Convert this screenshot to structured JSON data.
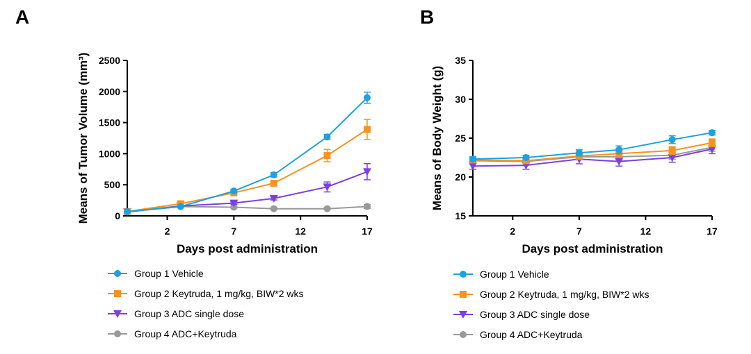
{
  "chart_data": [
    {
      "panel": "A",
      "type": "line",
      "xlabel": "Days post administration",
      "ylabel": "Means of Tumor Volume (mm³)",
      "xlim": [
        -1,
        17
      ],
      "ylim": [
        0,
        2500
      ],
      "xticks": [
        2,
        7,
        12,
        17
      ],
      "yticks": [
        0,
        500,
        1000,
        1500,
        2000,
        2500
      ],
      "x": [
        -1,
        3,
        7,
        10,
        14,
        17
      ],
      "series": [
        {
          "name": "Group 1 Vehicle",
          "color": "#1ca1e2",
          "marker": "circle",
          "values": [
            70,
            150,
            400,
            660,
            1270,
            1900
          ],
          "errors": [
            10,
            15,
            25,
            35,
            40,
            90
          ]
        },
        {
          "name": "Group 2 Keytruda, 1 mg/kg, BIW*2 wks",
          "color": "#f7931e",
          "marker": "square",
          "values": [
            70,
            195,
            370,
            525,
            970,
            1390
          ],
          "errors": [
            10,
            15,
            20,
            30,
            100,
            160
          ]
        },
        {
          "name": "Group 3 ADC single dose",
          "color": "#7b3fe4",
          "marker": "triangle-down",
          "values": [
            65,
            160,
            205,
            280,
            465,
            710
          ],
          "errors": [
            8,
            15,
            20,
            25,
            80,
            130
          ]
        },
        {
          "name": "Group 4 ADC+Keytruda",
          "color": "#999999",
          "marker": "circle",
          "values": [
            65,
            150,
            140,
            115,
            115,
            150
          ],
          "errors": [
            8,
            12,
            15,
            15,
            15,
            30
          ]
        }
      ]
    },
    {
      "panel": "B",
      "type": "line",
      "xlabel": "Days post administration",
      "ylabel": "Means of Body Weight (g)",
      "xlim": [
        -1,
        17
      ],
      "ylim": [
        15,
        35
      ],
      "xticks": [
        2,
        7,
        12,
        17
      ],
      "yticks": [
        15,
        20,
        25,
        30,
        35
      ],
      "x": [
        -1,
        3,
        7,
        10,
        14,
        17
      ],
      "series": [
        {
          "name": "Group 1 Vehicle",
          "color": "#1ca1e2",
          "marker": "circle",
          "values": [
            22.3,
            22.5,
            23.1,
            23.5,
            24.8,
            25.7
          ],
          "errors": [
            0.3,
            0.3,
            0.4,
            0.5,
            0.5,
            0.3
          ]
        },
        {
          "name": "Group 2 Keytruda, 1 mg/kg, BIW*2 wks",
          "color": "#f7931e",
          "marker": "square",
          "values": [
            22.2,
            22.1,
            22.7,
            23.0,
            23.4,
            24.4
          ],
          "errors": [
            0.3,
            0.3,
            0.4,
            0.5,
            0.5,
            0.5
          ]
        },
        {
          "name": "Group 3 ADC single dose",
          "color": "#7b3fe4",
          "marker": "triangle-down",
          "values": [
            21.4,
            21.5,
            22.3,
            22.0,
            22.5,
            23.6
          ],
          "errors": [
            0.4,
            0.5,
            0.6,
            0.6,
            0.6,
            0.6
          ]
        },
        {
          "name": "Group 4 ADC+Keytruda",
          "color": "#999999",
          "marker": "circle",
          "values": [
            22.1,
            22.0,
            22.6,
            22.6,
            22.8,
            23.8
          ],
          "errors": [
            0.3,
            0.3,
            0.4,
            0.4,
            0.5,
            0.5
          ]
        }
      ]
    }
  ]
}
